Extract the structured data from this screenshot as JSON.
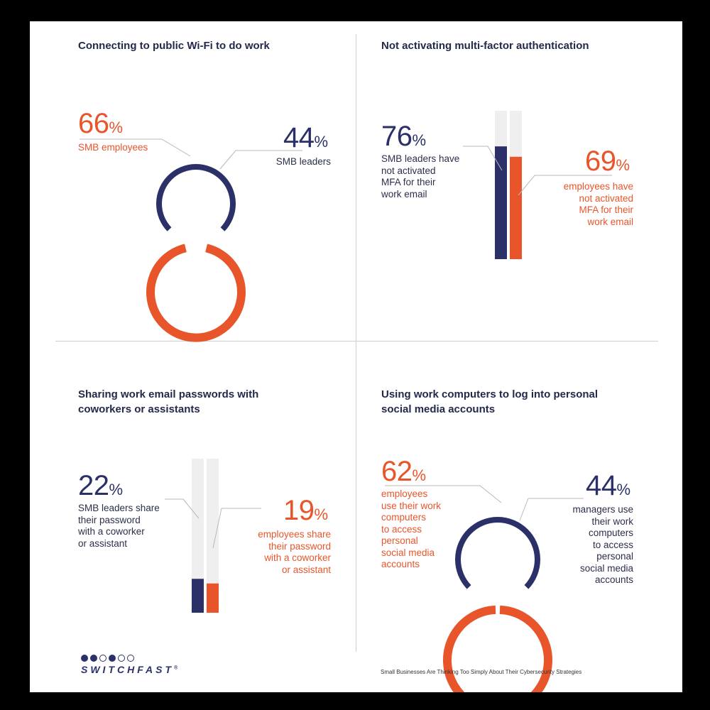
{
  "chart_data": [
    {
      "type": "gauge",
      "title": "Connecting to public Wi-Fi to do work",
      "series": [
        {
          "name": "SMB employees",
          "value": 66,
          "color": "#e8552a"
        },
        {
          "name": "SMB leaders",
          "value": 44,
          "color": "#2b3168"
        }
      ]
    },
    {
      "type": "bar",
      "title": "Not activating multi-factor authentication",
      "ylim": [
        0,
        100
      ],
      "series": [
        {
          "name": "SMB leaders have not activated MFA for their work email",
          "value": 76,
          "color": "#2b3168"
        },
        {
          "name": "employees have not activated MFA for their work email",
          "value": 69,
          "color": "#e8552a"
        }
      ]
    },
    {
      "type": "bar",
      "title": "Sharing work email passwords with coworkers or assistants",
      "ylim": [
        0,
        100
      ],
      "series": [
        {
          "name": "SMB leaders share their password with a coworker or assistant",
          "value": 22,
          "color": "#2b3168"
        },
        {
          "name": "employees share their password with a coworker or assistant",
          "value": 19,
          "color": "#e8552a"
        }
      ]
    },
    {
      "type": "gauge",
      "title": "Using work computers to log into personal social media accounts",
      "series": [
        {
          "name": "employees use their work computers to access personal social media accounts",
          "value": 62,
          "color": "#e8552a"
        },
        {
          "name": "managers use their work computers to access personal social media accounts",
          "value": 44,
          "color": "#2b3168"
        }
      ]
    }
  ],
  "panels": {
    "wifi": {
      "title": "Connecting to public Wi-Fi to do work",
      "a_num": "66",
      "a_label": "SMB employees",
      "b_num": "44",
      "b_label": "SMB leaders"
    },
    "mfa": {
      "title": "Not activating multi-factor authentication",
      "a_num": "76",
      "a_label": [
        "SMB leaders have",
        "not activated",
        "MFA for their",
        "work email"
      ],
      "b_num": "69",
      "b_label": [
        "employees have",
        "not activated",
        "MFA for their",
        "work email"
      ]
    },
    "share": {
      "title": [
        "Sharing work email passwords with",
        "coworkers or assistants"
      ],
      "a_num": "22",
      "a_label": [
        "SMB leaders share",
        "their password",
        "with a coworker",
        "or assistant"
      ],
      "b_num": "19",
      "b_label": [
        "employees share",
        "their password",
        "with a coworker",
        "or assistant"
      ]
    },
    "social": {
      "title": [
        "Using work computers to log into personal",
        "social media accounts"
      ],
      "a_num": "62",
      "a_label": [
        "employees",
        "use their work",
        "computers",
        "to access",
        "personal",
        "social media",
        "accounts"
      ],
      "b_num": "44",
      "b_label": [
        "managers use",
        "their work",
        "computers",
        "to access",
        "personal",
        "social media",
        "accounts"
      ]
    }
  },
  "percent_sign": "%",
  "brand": {
    "name": "SWITCHFAST",
    "mark": "®"
  },
  "footer": "Small Businesses Are Thinking Too Simply About Their Cybersecurity Strategies",
  "colors": {
    "navy": "#2b3168",
    "orange": "#e8552a",
    "track": "#efefef",
    "divider": "#cfcfcf"
  }
}
